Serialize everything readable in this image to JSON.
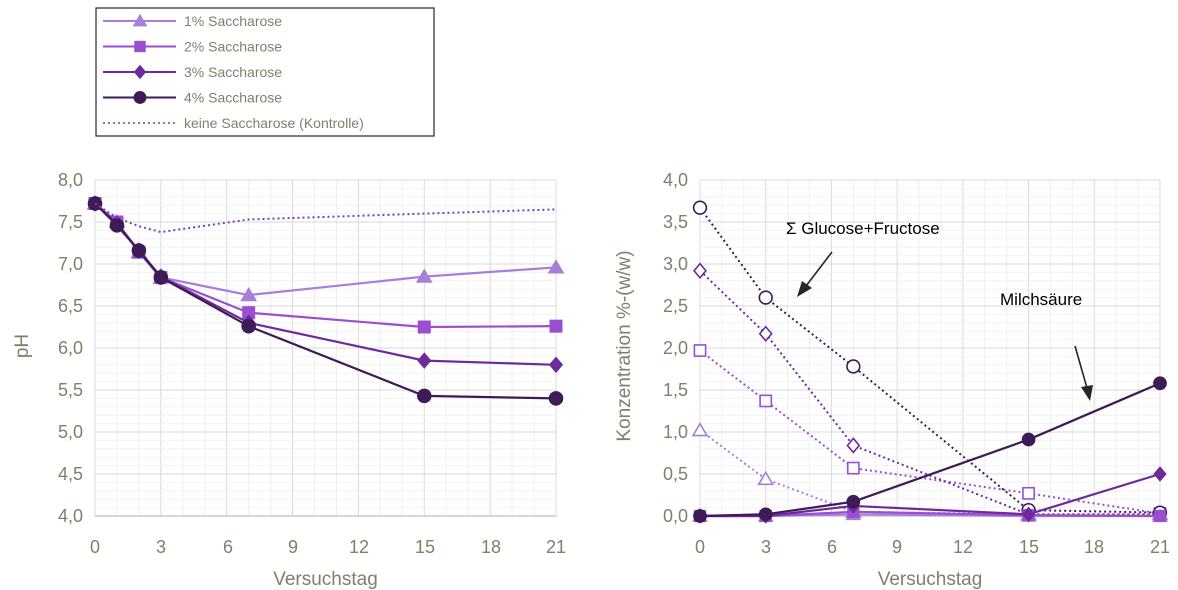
{
  "legend": {
    "position": "top-left",
    "items": [
      {
        "label": "1% Saccharose",
        "color": "#a77ed9",
        "marker": "triangle",
        "dashed": false
      },
      {
        "label": "2% Saccharose",
        "color": "#9b4fd0",
        "marker": "square",
        "dashed": false
      },
      {
        "label": "3% Saccharose",
        "color": "#6f2a9a",
        "marker": "diamond",
        "dashed": false
      },
      {
        "label": "4% Saccharose",
        "color": "#3d1b56",
        "marker": "circle",
        "dashed": false
      },
      {
        "label": "keine Saccharose (Kontrolle)",
        "color": "#7b3fb3",
        "marker": "none",
        "dashed": true
      }
    ]
  },
  "chart_data": [
    {
      "type": "line",
      "xlabel": "Versuchstag",
      "ylabel": "pH",
      "xlim": [
        0,
        21
      ],
      "ylim": [
        4.0,
        8.0
      ],
      "xticks": [
        "0",
        "3",
        "6",
        "9",
        "12",
        "15",
        "18",
        "21"
      ],
      "yticks": [
        "4,0",
        "4,5",
        "5,0",
        "5,5",
        "6,0",
        "6,5",
        "7,0",
        "7,5",
        "8,0"
      ],
      "grid": true,
      "series": [
        {
          "name": "1% Saccharose",
          "color": "#a77ed9",
          "marker": "triangle",
          "x": [
            0,
            1,
            2,
            3,
            7,
            15,
            21
          ],
          "y": [
            7.72,
            7.5,
            7.14,
            6.84,
            6.63,
            6.85,
            6.96
          ]
        },
        {
          "name": "2% Saccharose",
          "color": "#9b4fd0",
          "marker": "square",
          "x": [
            0,
            1,
            2,
            3,
            7,
            15,
            21
          ],
          "y": [
            7.72,
            7.5,
            7.14,
            6.84,
            6.42,
            6.25,
            6.26
          ]
        },
        {
          "name": "3% Saccharose",
          "color": "#6f2a9a",
          "marker": "diamond",
          "x": [
            0,
            1,
            2,
            3,
            7,
            15,
            21
          ],
          "y": [
            7.72,
            7.48,
            7.16,
            6.85,
            6.3,
            5.85,
            5.8
          ]
        },
        {
          "name": "4% Saccharose",
          "color": "#3d1b56",
          "marker": "circle",
          "x": [
            0,
            1,
            2,
            3,
            7,
            15,
            21
          ],
          "y": [
            7.72,
            7.46,
            7.16,
            6.84,
            6.26,
            5.43,
            5.4
          ]
        },
        {
          "name": "keine Saccharose (Kontrolle)",
          "color": "#7b3fb3",
          "marker": "none",
          "dashed": true,
          "x": [
            0,
            1,
            2,
            3,
            7,
            15,
            21
          ],
          "y": [
            7.72,
            7.55,
            7.45,
            7.38,
            7.53,
            7.6,
            7.65
          ]
        }
      ]
    },
    {
      "type": "line",
      "xlabel": "Versuchstag",
      "ylabel": "Konzentration %-(w/w)",
      "xlim": [
        0,
        21
      ],
      "ylim": [
        0.0,
        4.0
      ],
      "xticks": [
        "0",
        "3",
        "6",
        "9",
        "12",
        "15",
        "18",
        "21"
      ],
      "yticks": [
        "0,0",
        "0,5",
        "1,0",
        "1,5",
        "2,0",
        "2,5",
        "3,0",
        "3,5",
        "4,0"
      ],
      "grid": true,
      "annotations": [
        {
          "text": "Σ  Glucose+Fructose",
          "points_to": "sugar curves"
        },
        {
          "text": "Milchsäure",
          "points_to": "lactic acid curves"
        }
      ],
      "series": [
        {
          "group": "Σ Glucose+Fructose",
          "color": "#a77ed9",
          "marker": "triangle",
          "hollow": true,
          "dashed": true,
          "x": [
            0,
            3,
            7,
            15,
            21
          ],
          "y": [
            1.02,
            0.44,
            0.05,
            0.02,
            0.02
          ]
        },
        {
          "group": "Σ Glucose+Fructose",
          "color": "#9b4fd0",
          "marker": "square",
          "hollow": true,
          "dashed": true,
          "x": [
            0,
            3,
            7,
            15,
            21
          ],
          "y": [
            1.97,
            1.37,
            0.57,
            0.27,
            0.03
          ]
        },
        {
          "group": "Σ Glucose+Fructose",
          "color": "#6f2a9a",
          "marker": "diamond",
          "hollow": true,
          "dashed": true,
          "x": [
            0,
            3,
            7,
            15,
            21
          ],
          "y": [
            2.92,
            2.17,
            0.84,
            0.02,
            0.02
          ]
        },
        {
          "group": "Σ Glucose+Fructose",
          "color": "#3d1b56",
          "marker": "circle",
          "hollow": true,
          "dashed": true,
          "x": [
            0,
            3,
            7,
            15,
            21
          ],
          "y": [
            3.67,
            2.6,
            1.78,
            0.07,
            0.04
          ]
        },
        {
          "group": "Milchsäure",
          "color": "#a77ed9",
          "marker": "triangle",
          "hollow": false,
          "dashed": false,
          "x": [
            0,
            3,
            7,
            15,
            21
          ],
          "y": [
            0.0,
            0.0,
            0.02,
            0.0,
            0.0
          ]
        },
        {
          "group": "Milchsäure",
          "color": "#9b4fd0",
          "marker": "square",
          "hollow": false,
          "dashed": false,
          "x": [
            0,
            3,
            7,
            15,
            21
          ],
          "y": [
            0.0,
            0.0,
            0.05,
            0.01,
            0.0
          ]
        },
        {
          "group": "Milchsäure",
          "color": "#6f2a9a",
          "marker": "diamond",
          "hollow": false,
          "dashed": false,
          "x": [
            0,
            3,
            7,
            15,
            21
          ],
          "y": [
            0.0,
            0.0,
            0.12,
            0.02,
            0.5
          ]
        },
        {
          "group": "Milchsäure",
          "color": "#3d1b56",
          "marker": "circle",
          "hollow": false,
          "dashed": false,
          "x": [
            0,
            3,
            7,
            15,
            21
          ],
          "y": [
            0.0,
            0.02,
            0.17,
            0.91,
            1.58
          ]
        }
      ]
    }
  ]
}
